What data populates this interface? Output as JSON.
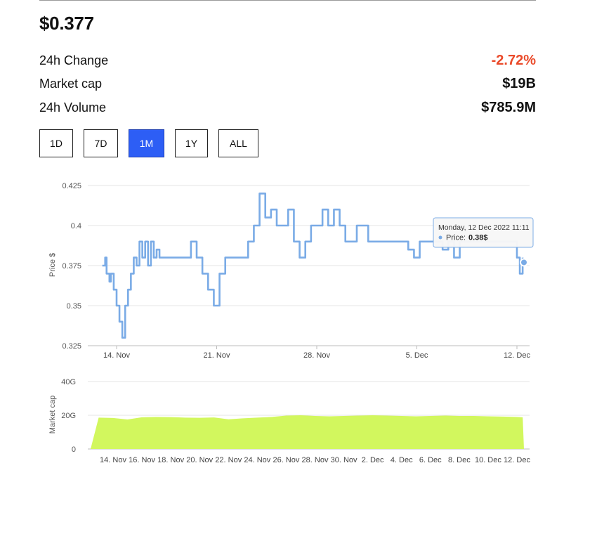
{
  "header": {
    "price": "$0.377",
    "stats": [
      {
        "label": "24h Change",
        "value": "-2.72%"
      },
      {
        "label": "Market cap",
        "value": "$19B"
      },
      {
        "label": "24h Volume",
        "value": "$785.9M"
      }
    ]
  },
  "timeframes": {
    "options": [
      "1D",
      "7D",
      "1M",
      "1Y",
      "ALL"
    ],
    "selected": "1M"
  },
  "tooltip": {
    "date": "Monday, 12 Dec 2022 11:11",
    "label": "Price:",
    "value": "0.38$"
  },
  "colors": {
    "price_line": "#7aabe6",
    "market_cap_area": "#d2f75e",
    "negative": "#ea4a2a",
    "active_button": "#2d5ef5"
  },
  "chart_data": [
    {
      "type": "line",
      "ylabel": "Price $",
      "xlabel": "",
      "ylim": [
        0.325,
        0.425
      ],
      "ytick_labels": [
        "0.325",
        "0.35",
        "0.375",
        "0.4",
        "0.425"
      ],
      "ytick_values": [
        0.325,
        0.35,
        0.375,
        0.4,
        0.425
      ],
      "xlim": [
        0,
        29
      ],
      "xtick_labels": [
        "14. Nov",
        "21. Nov",
        "28. Nov",
        "5. Dec",
        "12. Dec"
      ],
      "xtick_values": [
        0,
        7,
        14,
        21,
        28
      ],
      "grid": true,
      "series": [
        {
          "x": [
            -1.0,
            -0.8,
            -0.7,
            -0.5,
            -0.4,
            -0.2,
            0.0,
            0.2,
            0.4,
            0.6,
            0.8,
            1.0,
            1.2,
            1.4,
            1.6,
            1.8,
            2.0,
            2.2,
            2.4,
            2.6,
            2.8,
            3.0,
            3.3,
            3.6,
            4.0,
            4.4,
            4.8,
            5.2,
            5.6,
            6.0,
            6.4,
            6.8,
            7.2,
            7.6,
            8.0,
            8.4,
            8.8,
            9.2,
            9.6,
            10.0,
            10.4,
            10.8,
            11.2,
            11.6,
            12.0,
            12.4,
            12.8,
            13.2,
            13.6,
            14.0,
            14.4,
            14.8,
            15.2,
            15.6,
            16.0,
            16.4,
            16.8,
            17.2,
            17.6,
            18.0,
            18.4,
            18.8,
            19.2,
            19.6,
            20.0,
            20.4,
            20.8,
            21.2,
            21.6,
            22.0,
            22.4,
            22.8,
            23.2,
            23.6,
            24.0,
            24.4,
            24.8,
            25.2,
            25.6,
            26.0,
            26.4,
            26.8,
            27.2,
            27.6,
            28.0,
            28.2,
            28.4
          ],
          "y": [
            0.375,
            0.38,
            0.37,
            0.365,
            0.37,
            0.36,
            0.35,
            0.34,
            0.33,
            0.35,
            0.36,
            0.37,
            0.38,
            0.375,
            0.39,
            0.38,
            0.39,
            0.375,
            0.39,
            0.38,
            0.385,
            0.38,
            0.38,
            0.38,
            0.38,
            0.38,
            0.38,
            0.39,
            0.38,
            0.37,
            0.36,
            0.35,
            0.37,
            0.38,
            0.38,
            0.38,
            0.38,
            0.39,
            0.4,
            0.42,
            0.405,
            0.41,
            0.4,
            0.4,
            0.41,
            0.39,
            0.38,
            0.39,
            0.4,
            0.4,
            0.41,
            0.4,
            0.41,
            0.4,
            0.39,
            0.39,
            0.4,
            0.4,
            0.39,
            0.39,
            0.39,
            0.39,
            0.39,
            0.39,
            0.39,
            0.385,
            0.38,
            0.39,
            0.39,
            0.39,
            0.39,
            0.385,
            0.39,
            0.38,
            0.39,
            0.39,
            0.39,
            0.39,
            0.39,
            0.39,
            0.39,
            0.39,
            0.39,
            0.39,
            0.38,
            0.37,
            0.38
          ]
        }
      ]
    },
    {
      "type": "area",
      "ylabel": "Market cap",
      "xlabel": "",
      "ylim": [
        0,
        40
      ],
      "ytick_labels": [
        "0",
        "20G",
        "40G"
      ],
      "ytick_values": [
        0,
        20,
        40
      ],
      "xlim": [
        0,
        29
      ],
      "xtick_labels": [
        "14. Nov",
        "16. Nov",
        "18. Nov",
        "20. Nov",
        "22. Nov",
        "24. Nov",
        "26. Nov",
        "28. Nov",
        "30. Nov",
        "2. Dec",
        "4. Dec",
        "6. Dec",
        "8. Dec",
        "10. Dec",
        "12. Dec"
      ],
      "xtick_values": [
        0,
        2,
        4,
        6,
        8,
        10,
        12,
        14,
        16,
        18,
        20,
        22,
        24,
        26,
        28
      ],
      "series": [
        {
          "x": [
            -1,
            0,
            1,
            2,
            3,
            4,
            5,
            6,
            7,
            8,
            9,
            10,
            11,
            12,
            13,
            14,
            15,
            16,
            17,
            18,
            19,
            20,
            21,
            22,
            23,
            24,
            25,
            26,
            27,
            28,
            28.4
          ],
          "values": [
            18.6,
            18.4,
            17.5,
            18.8,
            19.0,
            18.9,
            18.6,
            18.5,
            18.7,
            17.6,
            18.2,
            18.6,
            19.0,
            19.8,
            20.0,
            19.6,
            19.4,
            19.6,
            19.8,
            20.0,
            19.8,
            19.6,
            19.4,
            19.6,
            19.8,
            19.6,
            19.6,
            19.4,
            19.2,
            19.0,
            18.8
          ]
        }
      ]
    }
  ]
}
